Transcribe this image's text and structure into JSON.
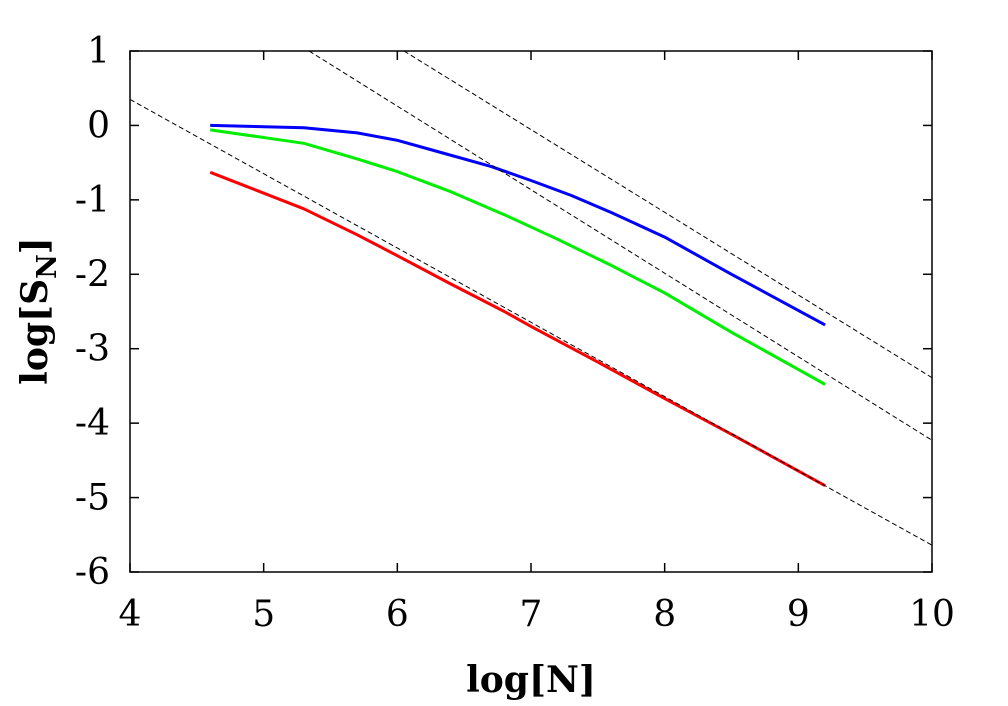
{
  "chart_data": {
    "type": "line",
    "xlabel": "log[N]",
    "ylabel": {
      "main": "log[S",
      "sub": "N",
      "close": "]"
    },
    "xlim": [
      4,
      10
    ],
    "ylim": [
      -6,
      1
    ],
    "xticks": [
      4,
      5,
      6,
      7,
      8,
      9,
      10
    ],
    "yticks": [
      1,
      0,
      -1,
      -2,
      -3,
      -4,
      -5,
      -6
    ],
    "xtick_labels": [
      "4",
      "5",
      "6",
      "7",
      "8",
      "9",
      "10"
    ],
    "ytick_labels": [
      "1",
      "0",
      "-1",
      "-2",
      "-3",
      "-4",
      "-5",
      "-6"
    ],
    "grid": false,
    "legend": "none",
    "series": [
      {
        "color": "#0000ff",
        "style": "solid",
        "x": [
          4.6,
          5.3,
          5.7,
          6.0,
          6.3,
          6.7,
          7.0,
          7.3,
          7.6,
          8.0,
          8.5,
          9.2
        ],
        "y": [
          0.0,
          -0.03,
          -0.1,
          -0.2,
          -0.35,
          -0.55,
          -0.74,
          -0.94,
          -1.17,
          -1.5,
          -2.0,
          -2.68
        ]
      },
      {
        "color": "#00ee00",
        "style": "solid",
        "x": [
          4.6,
          5.3,
          5.7,
          6.0,
          6.4,
          6.8,
          7.2,
          7.6,
          8.0,
          8.5,
          9.2
        ],
        "y": [
          -0.06,
          -0.24,
          -0.45,
          -0.62,
          -0.89,
          -1.2,
          -1.53,
          -1.88,
          -2.25,
          -2.78,
          -3.48
        ]
      },
      {
        "color": "#ff0000",
        "style": "solid",
        "x": [
          4.6,
          5.3,
          5.7,
          6.0,
          6.4,
          6.8,
          7.0,
          7.5,
          8.0,
          8.5,
          9.2
        ],
        "y": [
          -0.63,
          -1.12,
          -1.47,
          -1.75,
          -2.13,
          -2.5,
          -2.7,
          -3.18,
          -3.67,
          -4.15,
          -4.84
        ]
      },
      {
        "color": "#000000",
        "style": "dashed",
        "x": [
          4.0,
          10.0
        ],
        "y": [
          0.35,
          -5.64
        ]
      },
      {
        "color": "#000000",
        "style": "dashed",
        "x": [
          5.34,
          10.0
        ],
        "y": [
          1.0,
          -4.23
        ]
      },
      {
        "color": "#000000",
        "style": "dashed",
        "x": [
          6.05,
          10.0
        ],
        "y": [
          1.0,
          -3.39
        ]
      }
    ]
  }
}
